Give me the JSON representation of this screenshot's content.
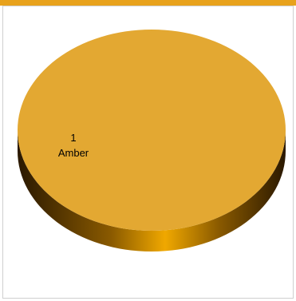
{
  "colors": {
    "top_bar": "#e8a21c",
    "slice_top": "#e3a832",
    "slice_side_light": "#f0a800",
    "slice_side_dark": "#2a1800"
  },
  "chart_data": {
    "type": "pie",
    "style": "3d",
    "categories": [
      "Amber"
    ],
    "values": [
      1
    ],
    "legend": "none",
    "grid": false,
    "slices": [
      {
        "label": "Amber",
        "value": 1,
        "color": "#e3a832"
      }
    ]
  }
}
